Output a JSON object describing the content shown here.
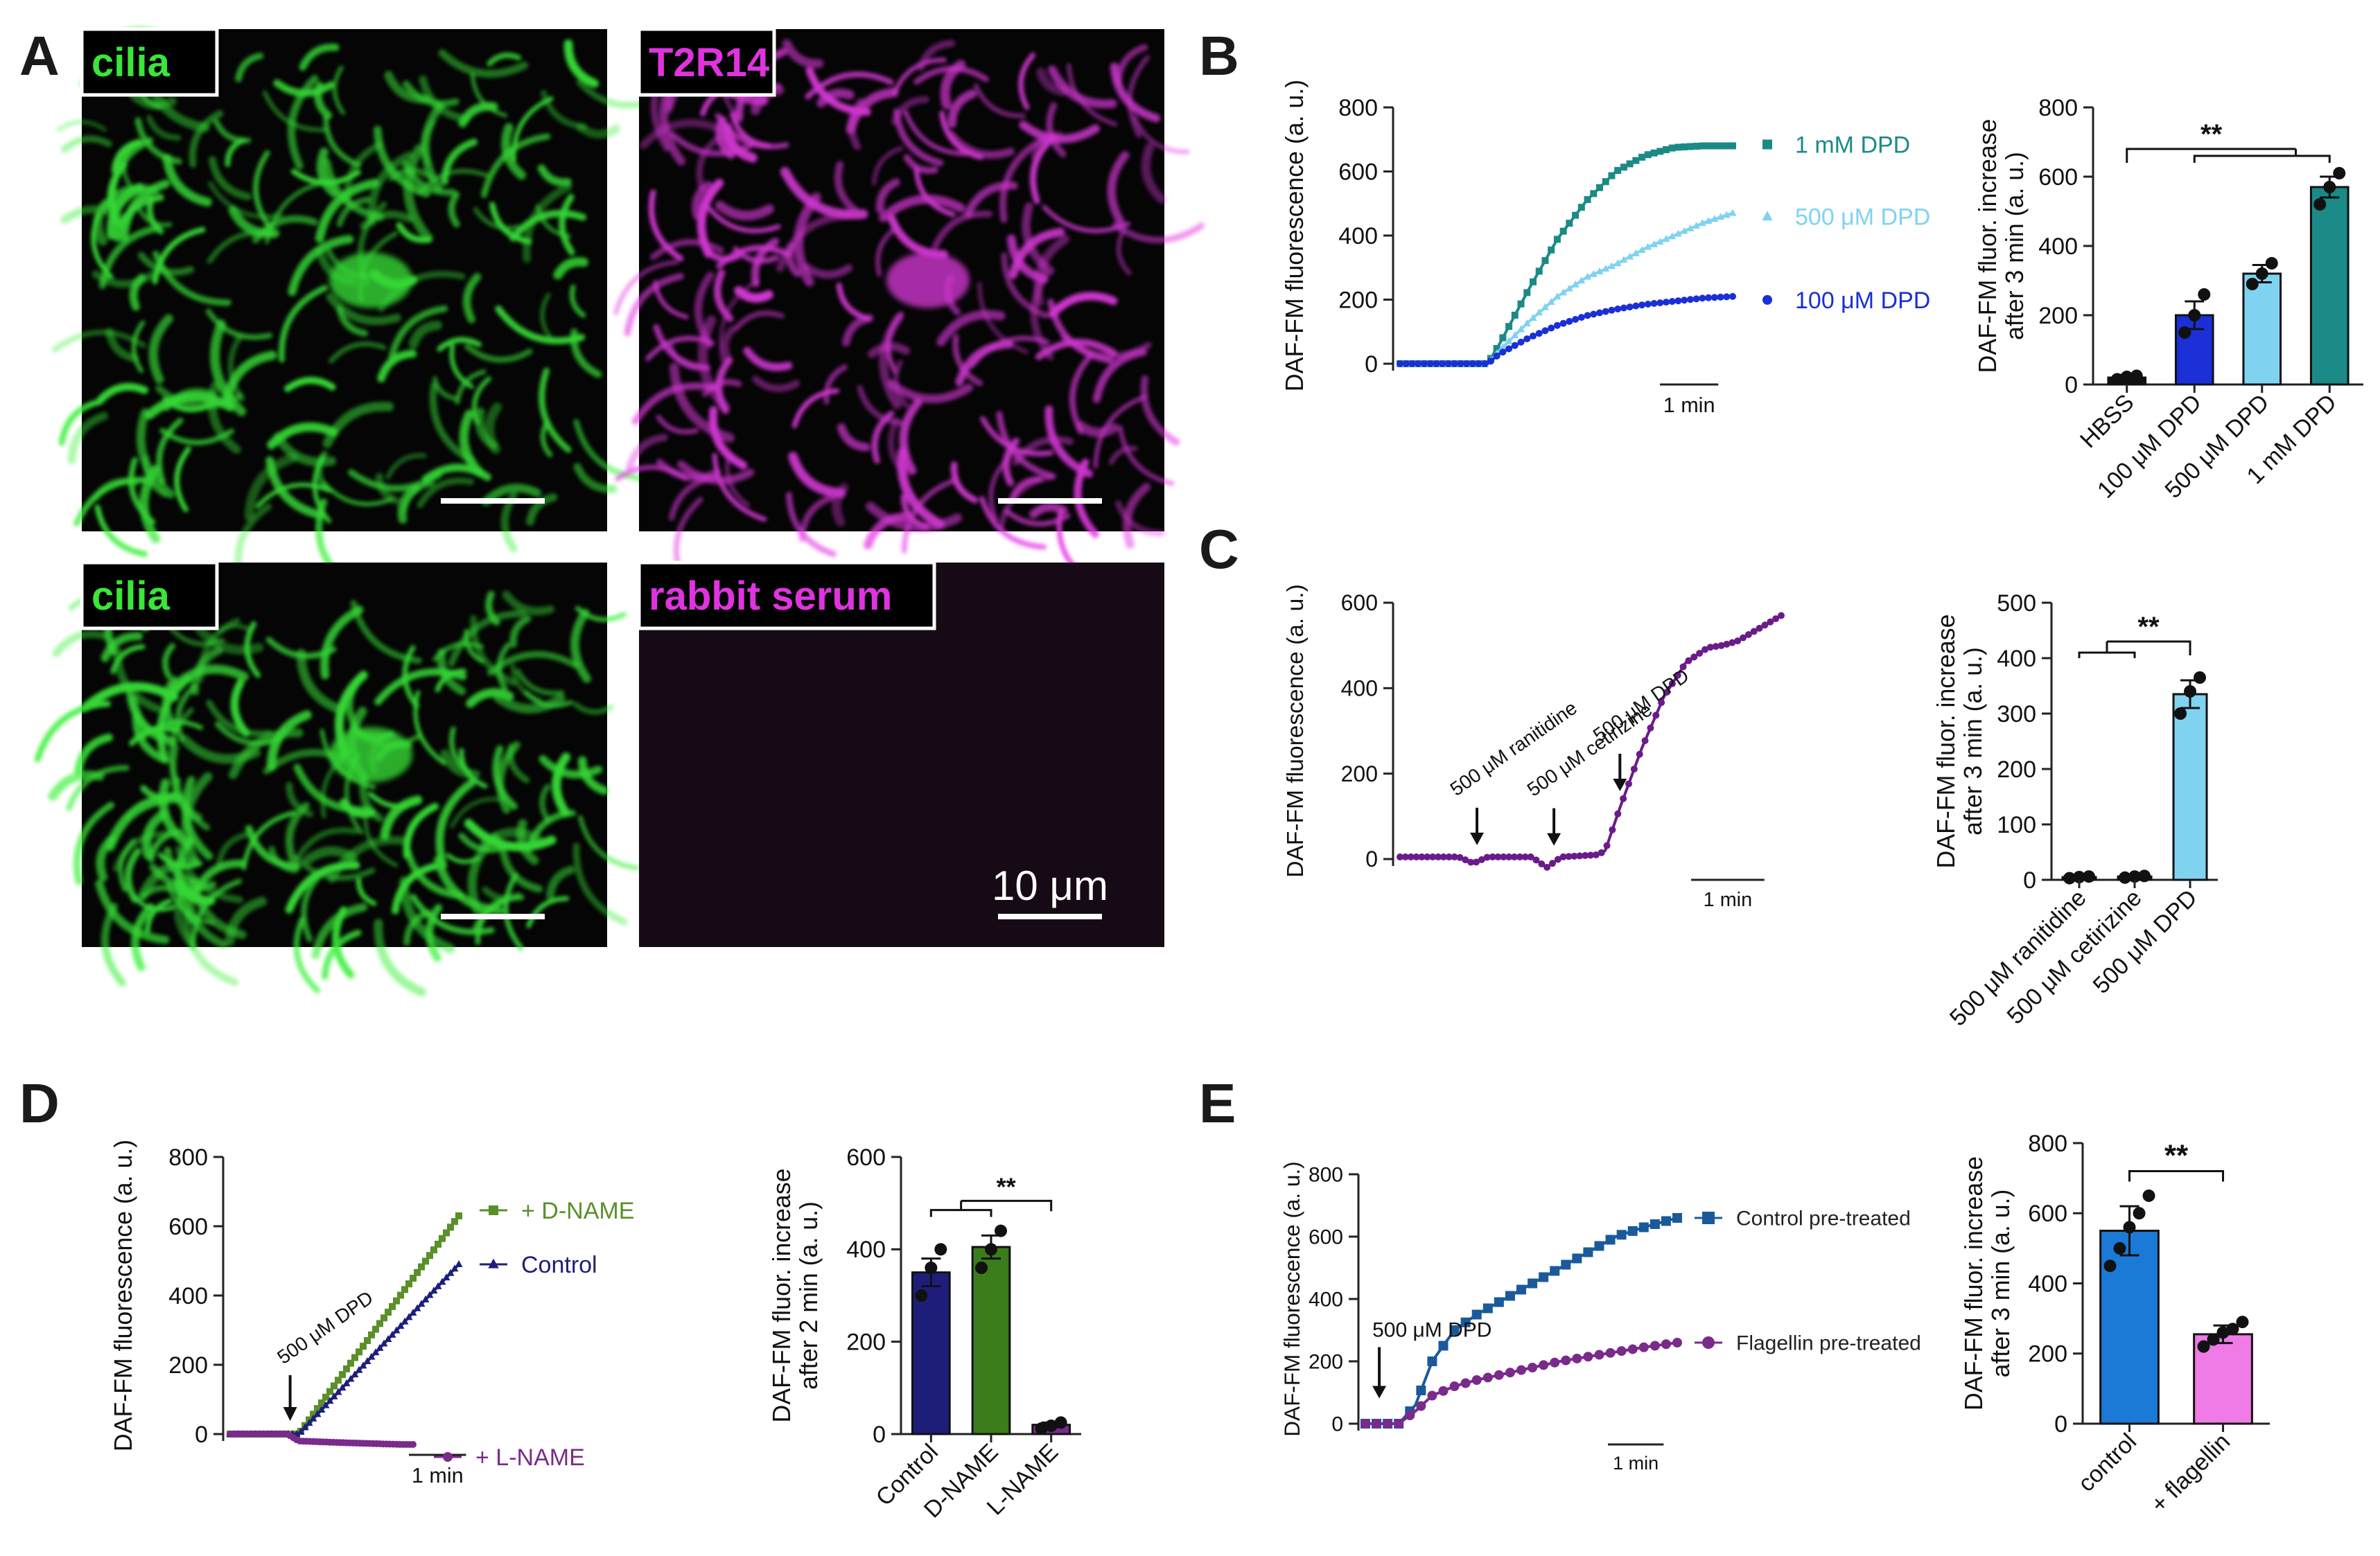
{
  "panels": {
    "A": {
      "letter": "A",
      "images": [
        {
          "label": "cilia",
          "label_color": "#39e639",
          "stain": "green"
        },
        {
          "label": "T2R14",
          "label_color": "#e033e0",
          "stain": "magenta"
        },
        {
          "label": "cilia",
          "label_color": "#39e639",
          "stain": "green"
        },
        {
          "label": "rabbit serum",
          "label_color": "#e033e0",
          "stain": "dark"
        }
      ],
      "scale_bar_label": "10 μm"
    },
    "B": {
      "letter": "B"
    },
    "C": {
      "letter": "C"
    },
    "D": {
      "letter": "D"
    },
    "E": {
      "letter": "E"
    }
  },
  "chart_data": [
    {
      "id": "B-trace",
      "type": "line",
      "ylabel": "DAF-FM fluorescence (a. u.)",
      "ylim": [
        0,
        800
      ],
      "yticks": [
        "0",
        "200",
        "400",
        "600",
        "800"
      ],
      "time_scale_label": "1 min",
      "x_unit": "min",
      "series": [
        {
          "name": "1 mM DPD",
          "color": "#1b8a86",
          "marker": "square",
          "x": [
            0,
            1.5,
            1.7,
            2.2,
            2.7,
            3.2,
            3.7,
            4.2,
            4.7,
            5.2,
            5.7
          ],
          "y": [
            0,
            0,
            60,
            230,
            390,
            510,
            600,
            650,
            675,
            680,
            680
          ]
        },
        {
          "name": "500 μM DPD",
          "color": "#7fd3f0",
          "marker": "triangle",
          "x": [
            0,
            1.5,
            1.7,
            2.2,
            2.7,
            3.2,
            3.7,
            4.2,
            4.7,
            5.2,
            5.7
          ],
          "y": [
            0,
            0,
            40,
            130,
            210,
            270,
            310,
            360,
            400,
            440,
            470
          ]
        },
        {
          "name": "100 μM DPD",
          "color": "#1a2fd6",
          "marker": "circle",
          "x": [
            0,
            1.5,
            1.7,
            2.2,
            2.7,
            3.2,
            3.7,
            4.2,
            4.7,
            5.2,
            5.7
          ],
          "y": [
            0,
            0,
            30,
            80,
            120,
            150,
            170,
            185,
            195,
            205,
            210
          ]
        }
      ]
    },
    {
      "id": "B-bar",
      "type": "bar",
      "ylabel": "DAF-FM fluor. increase\nafter 3 min (a. u.)",
      "ylim": [
        0,
        800
      ],
      "yticks": [
        "0",
        "200",
        "400",
        "600",
        "800"
      ],
      "categories": [
        "HBSS",
        "100 μM DPD",
        "500 μM DPD",
        "1 mM DPD"
      ],
      "values": [
        20,
        200,
        320,
        570
      ],
      "errors": [
        8,
        40,
        25,
        30
      ],
      "colors": [
        "#111111",
        "#1a2fd6",
        "#7fd3f0",
        "#1b8a86"
      ],
      "points": [
        [
          15,
          22,
          25
        ],
        [
          150,
          200,
          260
        ],
        [
          290,
          320,
          350
        ],
        [
          520,
          570,
          610
        ]
      ],
      "significance": "**"
    },
    {
      "id": "C-trace",
      "type": "line",
      "ylabel": "DAF-FM fluorescence (a. u.)",
      "ylim": [
        0,
        600
      ],
      "yticks": [
        "0",
        "200",
        "400",
        "600"
      ],
      "time_scale_label": "1 min",
      "annotations": [
        "500 μM ranitidine",
        "500 μM cetirizine",
        "500 μM DPD"
      ],
      "series": [
        {
          "name": "",
          "color": "#6a1b8a",
          "marker": "circle",
          "x": [
            0,
            0.8,
            1.0,
            1.2,
            1.8,
            2.0,
            2.2,
            2.7,
            2.8,
            3.0,
            3.3,
            3.6,
            3.9,
            4.2,
            4.4,
            4.6,
            4.9,
            5.2
          ],
          "y": [
            5,
            5,
            -10,
            5,
            5,
            -20,
            5,
            10,
            20,
            120,
            260,
            380,
            460,
            495,
            500,
            510,
            540,
            570
          ]
        }
      ]
    },
    {
      "id": "C-bar",
      "type": "bar",
      "ylabel": "DAF-FM fluor. increase\nafter 3 min (a. u.)",
      "ylim": [
        0,
        500
      ],
      "yticks": [
        "0",
        "100",
        "200",
        "300",
        "400",
        "500"
      ],
      "categories": [
        "500 μM ranitidine",
        "500 μM cetirizine",
        "500 μM DPD"
      ],
      "values": [
        5,
        6,
        335
      ],
      "errors": [
        2,
        2,
        25
      ],
      "colors": [
        "#111111",
        "#111111",
        "#7fd3f0"
      ],
      "points": [
        [
          3,
          5,
          6
        ],
        [
          4,
          6,
          7
        ],
        [
          300,
          340,
          365
        ]
      ],
      "significance": "**"
    },
    {
      "id": "D-trace",
      "type": "line",
      "ylabel": "DAF-FM fluorescence (a. u.)",
      "ylim": [
        0,
        800
      ],
      "yticks": [
        "0",
        "200",
        "400",
        "600",
        "800"
      ],
      "time_scale_label": "1 min",
      "annotations": [
        "500 μM DPD"
      ],
      "series": [
        {
          "name": "+ D-NAME",
          "color": "#5a8f29",
          "marker": "square",
          "x": [
            0,
            1.0,
            1.2,
            4.0
          ],
          "y": [
            0,
            0,
            0,
            630
          ]
        },
        {
          "name": "Control",
          "color": "#1e1e7a",
          "marker": "triangle",
          "x": [
            0,
            1.0,
            1.2,
            4.0
          ],
          "y": [
            0,
            0,
            0,
            490
          ]
        },
        {
          "name": "+ L-NAME",
          "color": "#7a2a8a",
          "marker": "circle",
          "x": [
            0,
            1.0,
            1.2,
            2.0,
            3.0,
            3.2
          ],
          "y": [
            0,
            0,
            -20,
            -25,
            -30,
            -30
          ]
        }
      ]
    },
    {
      "id": "D-bar",
      "type": "bar",
      "ylabel": "DAF-FM fluor. increase\nafter 2 min (a. u.)",
      "ylim": [
        0,
        600
      ],
      "yticks": [
        "0",
        "200",
        "400",
        "600"
      ],
      "categories": [
        "Control",
        "D-NAME",
        "L-NAME"
      ],
      "values": [
        350,
        405,
        20
      ],
      "errors": [
        30,
        25,
        5
      ],
      "colors": [
        "#1e1e7a",
        "#3a7d1a",
        "#7a2a8a"
      ],
      "points": [
        [
          300,
          360,
          400
        ],
        [
          360,
          400,
          440
        ],
        [
          12,
          18,
          25
        ]
      ],
      "significance": "**"
    },
    {
      "id": "E-trace",
      "type": "line",
      "ylabel": "DAF-FM fluorescence (a. u.)",
      "ylim": [
        0,
        800
      ],
      "yticks": [
        "0",
        "200",
        "400",
        "600",
        "800"
      ],
      "time_scale_label": "1 min",
      "annotations": [
        "500 μM DPD"
      ],
      "series": [
        {
          "name": "Control pre-treated",
          "color": "#1a5a9a",
          "marker": "square",
          "x": [
            0,
            0.6,
            0.9,
            1.2,
            1.6,
            2.0,
            2.5,
            3.0,
            3.5,
            4.0,
            4.5,
            5.0,
            5.6
          ],
          "y": [
            0,
            0,
            60,
            200,
            300,
            350,
            400,
            450,
            500,
            550,
            600,
            630,
            660
          ]
        },
        {
          "name": "Flagellin pre-treated",
          "color": "#7a2a8a",
          "marker": "circle",
          "x": [
            0,
            0.6,
            0.9,
            1.2,
            1.6,
            2.0,
            2.5,
            3.0,
            3.5,
            4.0,
            4.5,
            5.0,
            5.6
          ],
          "y": [
            0,
            0,
            40,
            90,
            120,
            140,
            160,
            180,
            200,
            215,
            230,
            245,
            260
          ]
        }
      ]
    },
    {
      "id": "E-bar",
      "type": "bar",
      "ylabel": "DAF-FM fluor. increase\nafter 3 min (a. u.)",
      "ylim": [
        0,
        800
      ],
      "yticks": [
        "0",
        "200",
        "400",
        "600",
        "800"
      ],
      "categories": [
        "control",
        "+ flagellin"
      ],
      "values": [
        550,
        255
      ],
      "errors": [
        70,
        25
      ],
      "colors": [
        "#1a7ad6",
        "#f07ae6"
      ],
      "points": [
        [
          450,
          500,
          560,
          600,
          650
        ],
        [
          220,
          240,
          260,
          270,
          290
        ]
      ],
      "significance": "**"
    }
  ]
}
